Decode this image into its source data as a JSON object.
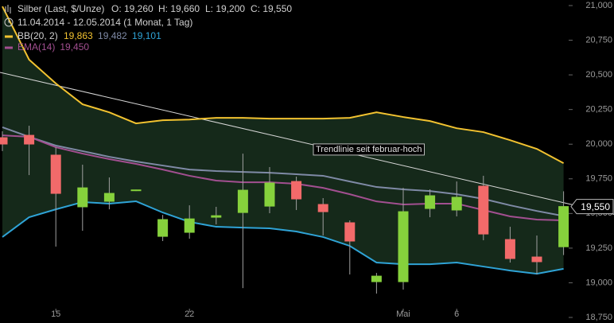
{
  "chart_data": {
    "type": "candlestick",
    "title": "Silber (Last, $/Unze)",
    "ohlc_header": [
      "O: 19,260",
      "H: 19,660",
      "L: 19,200",
      "C: 19,550"
    ],
    "period": "11.04.2014 - 12.05.2014 (1 Monat, 1 Tag)",
    "categories": [
      null,
      null,
      "15",
      null,
      null,
      null,
      null,
      "22",
      null,
      null,
      null,
      null,
      null,
      null,
      null,
      "Mai",
      null,
      "6",
      null,
      null,
      null,
      null
    ],
    "open": [
      20047,
      20064,
      19921,
      19548,
      19588,
      19668,
      19335,
      19364,
      19473,
      19507,
      19553,
      19731,
      19565,
      19433,
      19008,
      19008,
      19536,
      19525,
      19697,
      19312,
      19186,
      19260
    ],
    "high": [
      20093,
      20133,
      19978,
      19852,
      19760,
      19672,
      19490,
      19559,
      19548,
      19932,
      19835,
      19766,
      19611,
      19450,
      19071,
      19685,
      19674,
      19731,
      19772,
      19404,
      19341,
      19660
    ],
    "low": [
      19950,
      19777,
      19261,
      19375,
      19530,
      19662,
      19301,
      19318,
      19421,
      18962,
      19502,
      19525,
      19341,
      19060,
      18922,
      18951,
      19473,
      19479,
      19307,
      19146,
      19060,
      19200
    ],
    "close": [
      20001,
      20001,
      19645,
      19685,
      19645,
      19670,
      19456,
      19461,
      19484,
      19668,
      19720,
      19605,
      19513,
      19301,
      19048,
      19513,
      19628,
      19617,
      19352,
      19175,
      19152,
      19550
    ],
    "up_color": "#86d13c",
    "down_color": "#f26a6a",
    "band_fill": "#15291a",
    "series": [
      {
        "name": "BB(20, 2)",
        "color": "#f2c230",
        "last_label": "19,863",
        "values": [
          20994,
          20610,
          20438,
          20288,
          20230,
          20150,
          20173,
          20178,
          20190,
          20190,
          20184,
          20184,
          20184,
          20190,
          20230,
          20196,
          20167,
          20115,
          20087,
          20029,
          19966,
          19863
        ]
      },
      {
        "color": "#7f8aa6",
        "last_label": "19,482",
        "values": [
          20122,
          20053,
          19990,
          19950,
          19909,
          19875,
          19846,
          19817,
          19806,
          19800,
          19794,
          19783,
          19772,
          19731,
          19691,
          19674,
          19662,
          19639,
          19605,
          19559,
          19518,
          19482
        ]
      },
      {
        "color": "#2fa3d6",
        "last_label": "19,101",
        "values": [
          19330,
          19473,
          19530,
          19582,
          19571,
          19588,
          19507,
          19439,
          19404,
          19398,
          19393,
          19370,
          19330,
          19266,
          19146,
          19134,
          19134,
          19146,
          19117,
          19088,
          19065,
          19101
        ]
      },
      {
        "name": "EMA(14)",
        "color": "#a24f90",
        "last_label": "19,450",
        "values": [
          20064,
          20053,
          19978,
          19932,
          19892,
          19858,
          19817,
          19772,
          19737,
          19725,
          19725,
          19714,
          19685,
          19639,
          19587,
          19565,
          19571,
          19571,
          19525,
          19479,
          19456,
          19450
        ]
      }
    ],
    "trendline": {
      "label": "Trendlinie seit februar-hoch",
      "values": [
        20514,
        19578
      ],
      "color": "#d8d8d8"
    },
    "last_price_label": "19,550",
    "ylim": [
      18750,
      21000
    ],
    "yticks": [
      {
        "value": 18750,
        "label": "18,750"
      },
      {
        "value": 19000,
        "label": "19,000"
      },
      {
        "value": 19250,
        "label": "19,250"
      },
      {
        "value": 19500,
        "label": "19,500"
      },
      {
        "value": 19750,
        "label": "19,750"
      },
      {
        "value": 20000,
        "label": "20,000"
      },
      {
        "value": 20250,
        "label": "20,250"
      },
      {
        "value": 20500,
        "label": "20,500"
      },
      {
        "value": 20750,
        "label": "20,750"
      },
      {
        "value": 21000,
        "label": "21,000"
      }
    ]
  }
}
